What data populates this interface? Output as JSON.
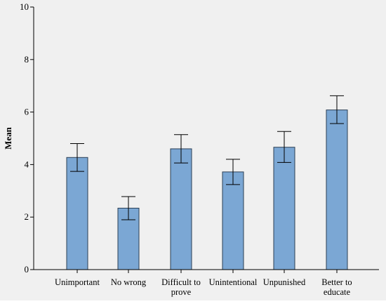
{
  "chart_data": {
    "type": "bar",
    "categories": [
      [
        "Unimportant"
      ],
      [
        "No wrong"
      ],
      [
        "Difficult to",
        "prove"
      ],
      [
        "Unintentional"
      ],
      [
        "Unpunished"
      ],
      [
        "Better to",
        "educate"
      ]
    ],
    "values": [
      4.27,
      2.34,
      4.6,
      3.72,
      4.66,
      6.08
    ],
    "error_low": [
      3.74,
      1.9,
      4.06,
      3.24,
      4.08,
      5.56
    ],
    "error_high": [
      4.8,
      2.78,
      5.14,
      4.2,
      5.26,
      6.62
    ],
    "ylabel": "Mean",
    "ylim": [
      0,
      10
    ],
    "yticks": [
      "0",
      "2",
      "4",
      "6",
      "8",
      "10"
    ],
    "grid": false,
    "colors": {
      "bar_fill": "#7ba7d4",
      "bar_stroke": "#2b3f55",
      "plot_bg": "#f0f0f0",
      "axis": "#000000"
    }
  }
}
